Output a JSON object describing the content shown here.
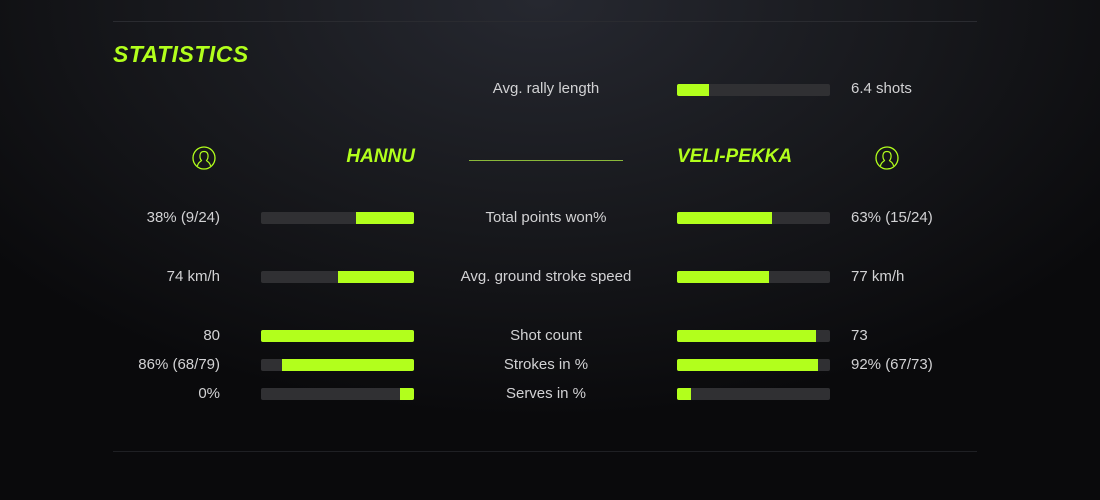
{
  "title": "STATISTICS",
  "accent_color": "#b2ff1c",
  "rally": {
    "label": "Avg. rally length",
    "value": "6.4 shots",
    "fill": 0.21
  },
  "players": {
    "left": {
      "name": "HANNU",
      "icon": "user-circle-icon"
    },
    "right": {
      "name": "VELI-PEKKA",
      "icon": "user-circle-icon"
    }
  },
  "stats": [
    {
      "label": "Total points won%",
      "left": "38% (9/24)",
      "right": "63% (15/24)",
      "left_fill": 0.38,
      "right_fill": 0.62
    },
    {
      "label": "Avg. ground stroke speed",
      "left": "74 km/h",
      "right": "77 km/h",
      "left_fill": 0.5,
      "right_fill": 0.6
    },
    {
      "label": "Shot count",
      "left": "80",
      "right": "73",
      "left_fill": 1.0,
      "right_fill": 0.91
    },
    {
      "label": "Strokes in %",
      "left": "86% (68/79)",
      "right": "92% (67/73)",
      "left_fill": 0.86,
      "right_fill": 0.92
    },
    {
      "label": "Serves in %",
      "left": "0%",
      "right": "",
      "left_fill": 0.09,
      "right_fill": 0.09
    }
  ]
}
